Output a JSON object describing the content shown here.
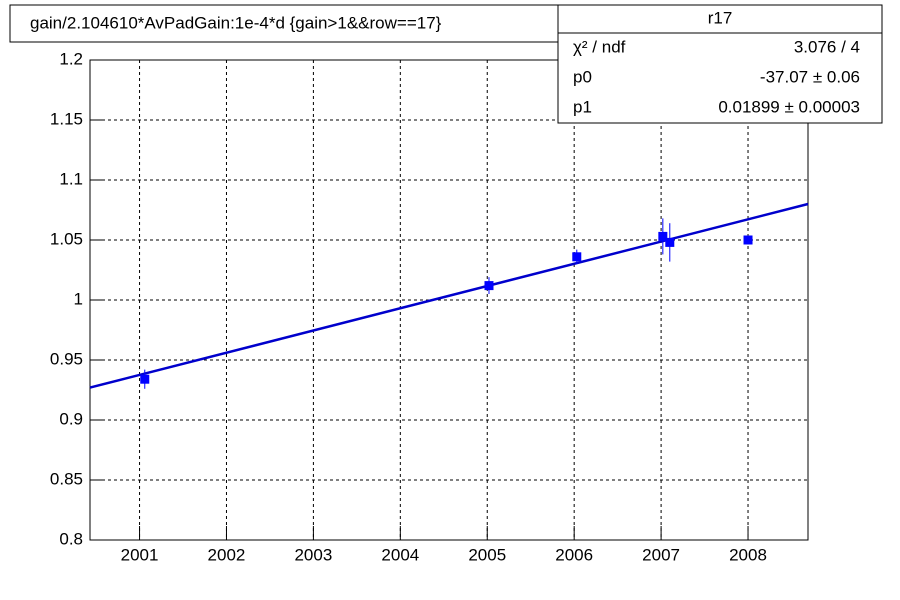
{
  "chart_data": {
    "type": "scatter",
    "title": "gain/2.104610*AvPadGain:1e-4*d  {gain>1&&row==17}",
    "series": [
      {
        "color": "#0000ff",
        "x": [
          2001.06,
          2005.02,
          2006.03,
          2007.02,
          2007.1,
          2008.0
        ],
        "values": [
          0.934,
          1.012,
          1.036,
          1.053,
          1.048,
          1.05
        ],
        "errors": [
          0.008,
          0.007,
          0.006,
          0.015,
          0.016,
          0.003
        ]
      }
    ],
    "fit": {
      "color": "#0000cc",
      "x": [
        2000.43,
        2008.69
      ],
      "values": [
        0.927,
        1.08
      ]
    },
    "xlim": [
      2000.43,
      2008.69
    ],
    "xticks": [
      2001,
      2002,
      2003,
      2004,
      2005,
      2006,
      2007,
      2008
    ],
    "ylim": [
      0.8,
      1.2
    ],
    "yticks": [
      0.8,
      0.85,
      0.9,
      0.95,
      1,
      1.05,
      1.1,
      1.15,
      1.2
    ],
    "grid": true,
    "stats": {
      "title": "r17",
      "rows": [
        {
          "label": "χ² / ndf",
          "value": "3.076 / 4"
        },
        {
          "label": "p0",
          "value": "-37.07 ± 0.06"
        },
        {
          "label": "p1",
          "value": "0.01899  ± 0.00003"
        }
      ]
    }
  }
}
